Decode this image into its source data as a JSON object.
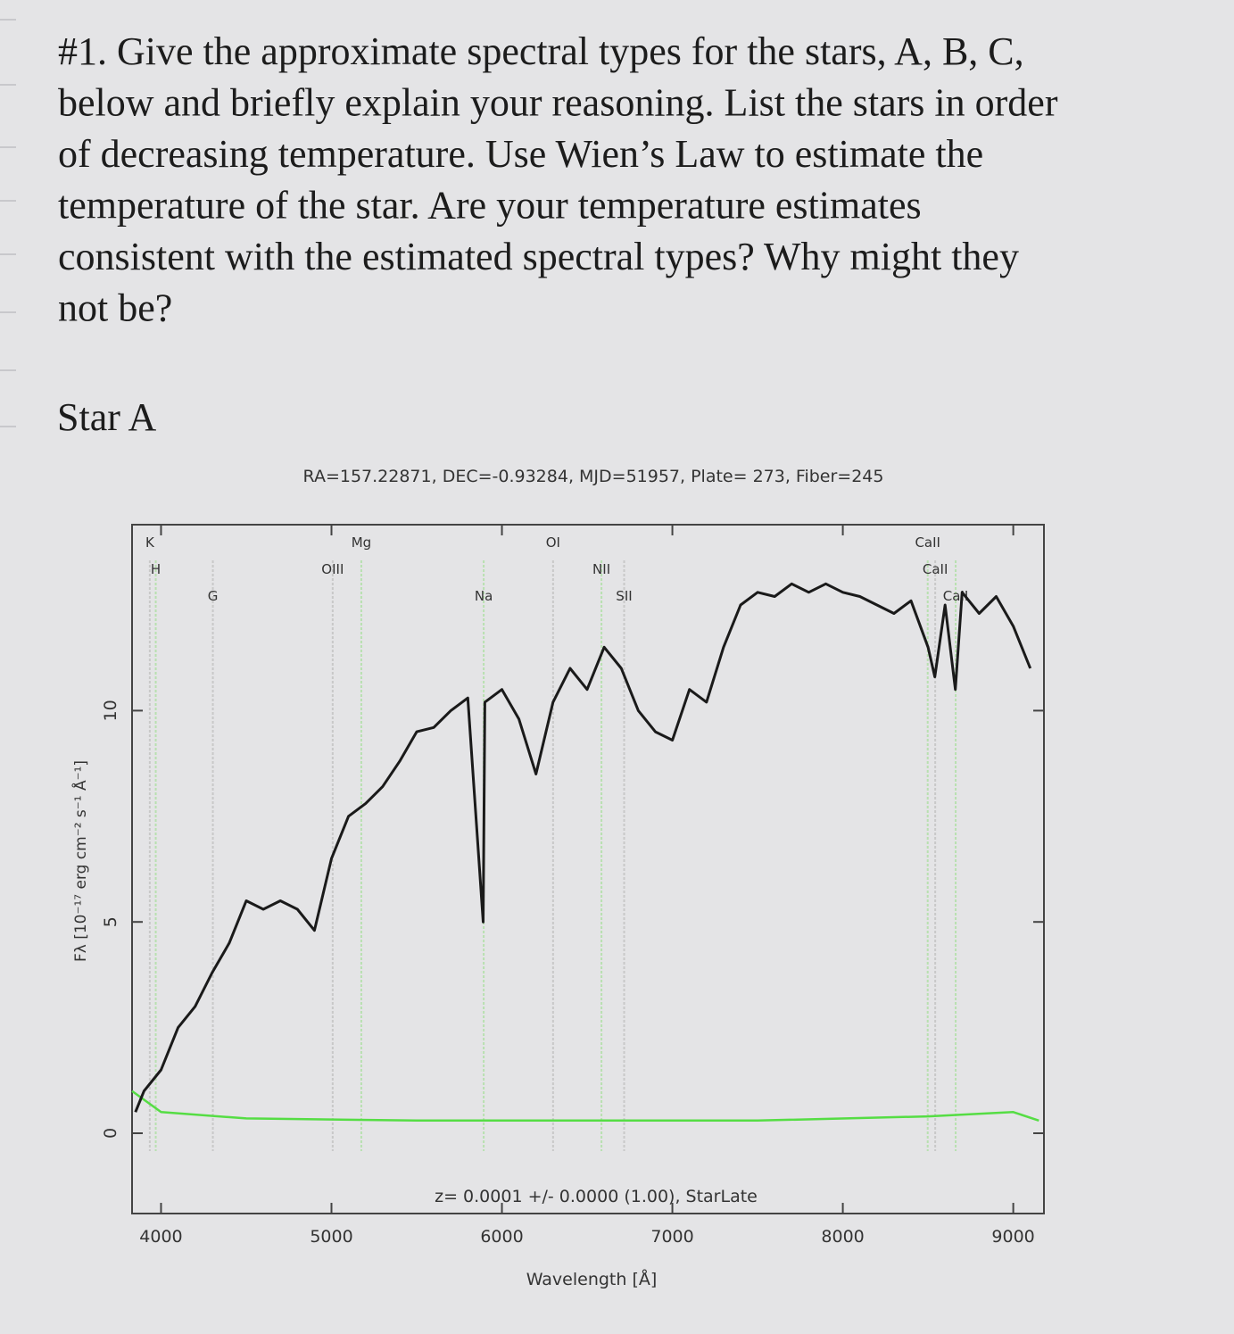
{
  "question": {
    "lines": [
      "#1. Give the approximate spectral types for the stars, A, B, C,",
      "below and briefly explain your reasoning. List the stars in order",
      "of decreasing temperature. Use Wien’s Law to estimate the",
      "temperature of the star. Are your temperature estimates",
      "consistent with the estimated spectral types? Why might they",
      "not be?"
    ]
  },
  "heading": "Star A",
  "chart_data": {
    "type": "line",
    "title": "RA=157.22871, DEC=-0.93284, MJD=51957, Plate= 273, Fiber=245",
    "annotation": "z= 0.0001 +/- 0.0000 (1.00), StarLate",
    "xlabel": "Wavelength [Å]",
    "ylabel": "Fλ [10⁻¹⁷ erg cm⁻² s⁻¹ Å⁻¹]",
    "xlim": [
      3830,
      9180
    ],
    "ylim": [
      -1.9,
      14.4
    ],
    "xticks": [
      4000,
      5000,
      6000,
      7000,
      8000,
      9000
    ],
    "yticks": [
      0,
      5,
      10
    ],
    "line_labels": [
      {
        "label": "K",
        "x": 3934
      },
      {
        "label": "H",
        "x": 3969
      },
      {
        "label": "G",
        "x": 4304
      },
      {
        "label": "Mg",
        "x": 5175
      },
      {
        "label": "OIII",
        "x": 5007
      },
      {
        "label": "Na",
        "x": 5893
      },
      {
        "label": "OI",
        "x": 6300
      },
      {
        "label": "NII",
        "x": 6584
      },
      {
        "label": "SII",
        "x": 6717
      },
      {
        "label": "CaII",
        "x": 8498
      },
      {
        "label": "CaII",
        "x": 8542
      },
      {
        "label": "CaII",
        "x": 8662
      }
    ],
    "series": [
      {
        "name": "spectrum",
        "color": "#1a1a1a",
        "x": [
          3850,
          3900,
          4000,
          4100,
          4200,
          4300,
          4400,
          4500,
          4600,
          4700,
          4800,
          4900,
          5000,
          5100,
          5200,
          5300,
          5400,
          5500,
          5600,
          5700,
          5800,
          5890,
          5900,
          6000,
          6100,
          6200,
          6300,
          6400,
          6500,
          6600,
          6700,
          6800,
          6900,
          7000,
          7100,
          7200,
          7300,
          7400,
          7500,
          7600,
          7700,
          7800,
          7900,
          8000,
          8100,
          8200,
          8300,
          8400,
          8500,
          8540,
          8600,
          8660,
          8700,
          8800,
          8900,
          9000,
          9100
        ],
        "values": [
          0.5,
          1.0,
          1.5,
          2.5,
          3.0,
          3.8,
          4.5,
          5.5,
          5.3,
          5.5,
          5.3,
          4.8,
          6.5,
          7.5,
          7.8,
          8.2,
          8.8,
          9.5,
          9.6,
          10.0,
          10.3,
          5,
          10.2,
          10.5,
          9.8,
          8.5,
          10.2,
          11.0,
          10.5,
          11.5,
          11.0,
          10.0,
          9.5,
          9.3,
          10.5,
          10.2,
          11.5,
          12.5,
          12.8,
          12.7,
          13.0,
          12.8,
          13.0,
          12.8,
          12.7,
          12.5,
          12.3,
          12.6,
          11.5,
          10.8,
          12.5,
          10.5,
          12.8,
          12.3,
          12.7,
          12.0,
          11.0
        ]
      },
      {
        "name": "error",
        "color": "#55dd44",
        "x": [
          3830,
          4000,
          4500,
          5500,
          6500,
          7500,
          8500,
          9000,
          9150
        ],
        "values": [
          1.0,
          0.5,
          0.35,
          0.3,
          0.3,
          0.3,
          0.4,
          0.5,
          0.3
        ]
      }
    ]
  }
}
